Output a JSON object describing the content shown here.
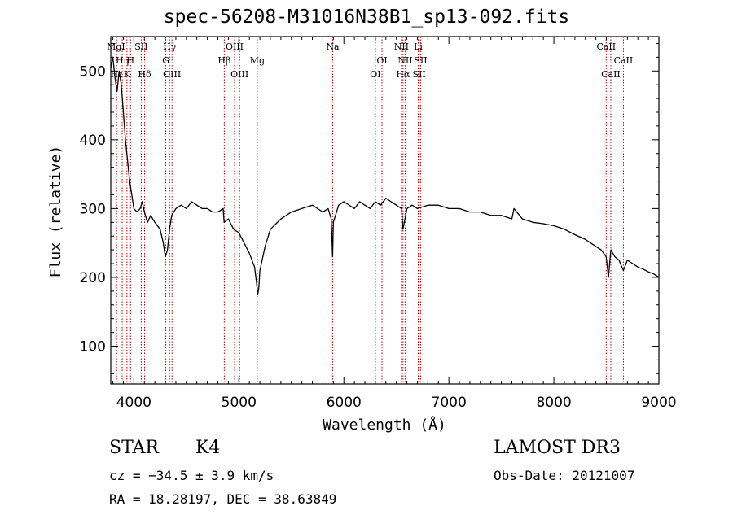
{
  "header": {
    "title": "spec-56208-M31016N38B1_sp13-092.fits"
  },
  "info": {
    "object_class": "STAR",
    "subclass": "K4",
    "survey": "LAMOST DR3",
    "cz": "cz = −34.5 ± 3.9 km/s",
    "obs_date": "Obs-Date: 20121007",
    "ra_dec": "RA =  18.28197, DEC =  38.63849"
  },
  "chart_data": {
    "type": "line",
    "title": "spec-56208-M31016N38B1_sp13-092.fits",
    "xlabel": "Wavelength (Å)",
    "ylabel": "Flux (relative)",
    "xlim": [
      3780,
      9000
    ],
    "ylim": [
      45,
      550
    ],
    "xticks": [
      4000,
      5000,
      6000,
      7000,
      8000,
      9000
    ],
    "yticks": [
      100,
      200,
      300,
      400,
      500
    ],
    "grid": false,
    "line_color": "#000000",
    "marker_color": "#c00000",
    "series": [
      {
        "x": [
          3780,
          3800,
          3820,
          3840,
          3860,
          3880,
          3900,
          3920,
          3940,
          3960,
          3980,
          4000,
          4030,
          4060,
          4080,
          4100,
          4130,
          4160,
          4200,
          4250,
          4280,
          4300,
          4320,
          4340,
          4360,
          4400,
          4450,
          4500,
          4550,
          4600,
          4650,
          4700,
          4750,
          4800,
          4850,
          4860,
          4900,
          4950,
          5000,
          5050,
          5100,
          5150,
          5170,
          5180,
          5190,
          5200,
          5250,
          5300,
          5400,
          5500,
          5600,
          5700,
          5800,
          5850,
          5880,
          5893,
          5900,
          5950,
          6000,
          6050,
          6100,
          6150,
          6200,
          6250,
          6300,
          6350,
          6400,
          6450,
          6500,
          6550,
          6563,
          6600,
          6650,
          6700,
          6800,
          6900,
          7000,
          7100,
          7200,
          7300,
          7400,
          7500,
          7600,
          7620,
          7700,
          7800,
          7900,
          8000,
          8100,
          8200,
          8300,
          8400,
          8450,
          8498,
          8520,
          8542,
          8580,
          8620,
          8662,
          8700,
          8750,
          8800,
          8850,
          8900,
          8950,
          9000
        ],
        "values": [
          505,
          520,
          490,
          470,
          500,
          480,
          440,
          400,
          370,
          340,
          320,
          300,
          295,
          300,
          310,
          295,
          280,
          290,
          280,
          270,
          250,
          230,
          240,
          270,
          290,
          300,
          305,
          300,
          310,
          305,
          300,
          300,
          295,
          295,
          300,
          280,
          285,
          270,
          265,
          250,
          235,
          215,
          190,
          175,
          185,
          210,
          245,
          270,
          285,
          295,
          300,
          305,
          295,
          300,
          285,
          230,
          280,
          305,
          310,
          305,
          300,
          310,
          305,
          300,
          310,
          305,
          315,
          310,
          305,
          300,
          270,
          300,
          305,
          300,
          305,
          305,
          300,
          300,
          295,
          295,
          290,
          290,
          285,
          300,
          285,
          280,
          278,
          275,
          270,
          262,
          255,
          245,
          240,
          230,
          200,
          240,
          230,
          225,
          210,
          225,
          220,
          215,
          212,
          208,
          205,
          200
        ]
      }
    ],
    "lines": [
      {
        "label": "Hε",
        "wavelength": 3835,
        "row": 3
      },
      {
        "label": "Hη",
        "wavelength": 3889,
        "row": 2
      },
      {
        "label": "K",
        "wavelength": 3934,
        "row": 3
      },
      {
        "label": "H",
        "wavelength": 3968,
        "row": 2
      },
      {
        "label": "MgI",
        "wavelength": 3830,
        "row": 1
      },
      {
        "label": "SII",
        "wavelength": 4070,
        "row": 1
      },
      {
        "label": "Hδ",
        "wavelength": 4102,
        "row": 3
      },
      {
        "label": "Hγ",
        "wavelength": 4340,
        "row": 1
      },
      {
        "label": "G",
        "wavelength": 4304,
        "row": 2
      },
      {
        "label": "OIII",
        "wavelength": 4363,
        "row": 3
      },
      {
        "label": "OIII",
        "wavelength": 4959,
        "row": 1
      },
      {
        "label": "Hβ",
        "wavelength": 4861,
        "row": 2
      },
      {
        "label": "OIII",
        "wavelength": 5007,
        "row": 3
      },
      {
        "label": "Mg",
        "wavelength": 5175,
        "row": 2
      },
      {
        "label": "Na",
        "wavelength": 5893,
        "row": 1
      },
      {
        "label": "OI",
        "wavelength": 6363,
        "row": 2
      },
      {
        "label": "OI",
        "wavelength": 6300,
        "row": 3
      },
      {
        "label": "NII",
        "wavelength": 6548,
        "row": 1
      },
      {
        "label": "NII",
        "wavelength": 6583,
        "row": 2
      },
      {
        "label": "Hα",
        "wavelength": 6563,
        "row": 3
      },
      {
        "label": "Li",
        "wavelength": 6708,
        "row": 1
      },
      {
        "label": "SII",
        "wavelength": 6731,
        "row": 2
      },
      {
        "label": "SII",
        "wavelength": 6717,
        "row": 3
      },
      {
        "label": "CaII",
        "wavelength": 8498,
        "row": 1
      },
      {
        "label": "CaII",
        "wavelength": 8662,
        "row": 2
      },
      {
        "label": "CaII",
        "wavelength": 8542,
        "row": 3
      }
    ]
  }
}
